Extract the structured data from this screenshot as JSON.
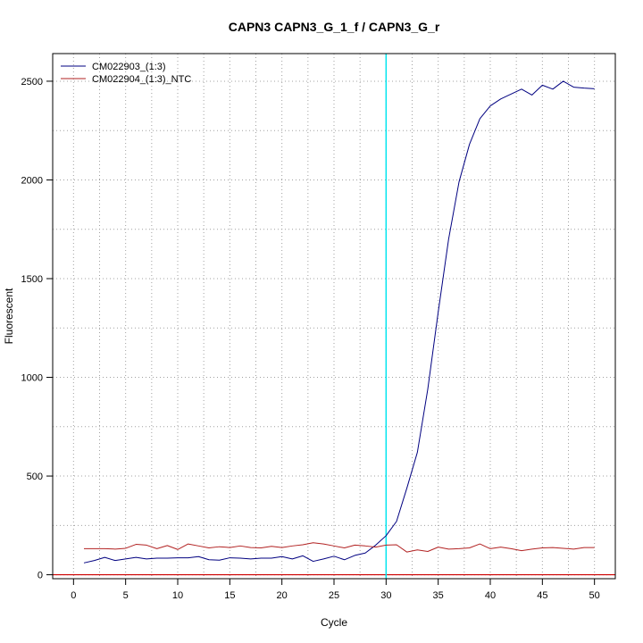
{
  "chart_data": {
    "type": "line",
    "title": "CAPN3  CAPN3_G_1_f / CAPN3_G_r",
    "xlabel": "Cycle",
    "ylabel": "Fluorescent",
    "xlim": [
      -2,
      52
    ],
    "ylim": [
      -20,
      2640
    ],
    "xticks": [
      0,
      5,
      10,
      15,
      20,
      25,
      30,
      35,
      40,
      45,
      50
    ],
    "yticks": [
      0,
      500,
      1000,
      1500,
      2000,
      2500
    ],
    "grid": "on",
    "legend": "top-left",
    "threshold_x": 30,
    "threshold_color": "#00e5ee",
    "baseline_y": 0,
    "baseline_color": "#cd0000",
    "x": [
      1,
      2,
      3,
      4,
      5,
      6,
      7,
      8,
      9,
      10,
      11,
      12,
      13,
      14,
      15,
      16,
      17,
      18,
      19,
      20,
      21,
      22,
      23,
      24,
      25,
      26,
      27,
      28,
      29,
      30,
      31,
      32,
      33,
      34,
      35,
      36,
      37,
      38,
      39,
      40,
      41,
      42,
      43,
      44,
      45,
      46,
      47,
      48,
      49,
      50
    ],
    "series": [
      {
        "name": "CM022903_(1:3)",
        "color": "#000080",
        "values": [
          60,
          72,
          88,
          72,
          80,
          88,
          80,
          84,
          84,
          86,
          86,
          92,
          76,
          74,
          86,
          84,
          80,
          84,
          84,
          92,
          80,
          96,
          68,
          80,
          94,
          76,
          98,
          110,
          150,
          198,
          270,
          440,
          620,
          940,
          1330,
          1700,
          1990,
          2180,
          2310,
          2375,
          2410,
          2435,
          2460,
          2430,
          2480,
          2460,
          2500,
          2470,
          2465,
          2462
        ]
      },
      {
        "name": "CM022904_(1:3)_NTC",
        "color": "#b22222",
        "values": [
          132,
          132,
          132,
          130,
          134,
          154,
          150,
          132,
          148,
          128,
          156,
          146,
          136,
          142,
          138,
          146,
          138,
          136,
          144,
          138,
          146,
          152,
          162,
          156,
          146,
          136,
          150,
          146,
          140,
          150,
          152,
          115,
          126,
          118,
          140,
          130,
          132,
          136,
          156,
          132,
          140,
          132,
          122,
          130,
          136,
          138,
          134,
          130,
          138,
          138
        ]
      }
    ]
  }
}
